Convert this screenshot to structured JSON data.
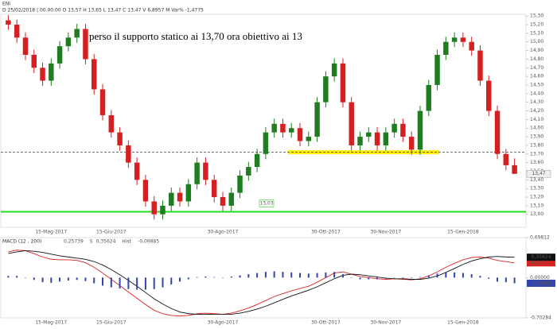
{
  "chart_data": [
    {
      "type": "candlestick",
      "title": "ENI",
      "info": "D 25/02/2018 | 00.00.00  O 13,57  H 13,65  L 13,47  C 13,47  V 6,8957 M  Var% -1,4775",
      "annotation": "perso il supporto statico ai 13,70 ora obiettivo ai 13",
      "categories": [
        null,
        null,
        null,
        null,
        null,
        "15-Mag-2017",
        null,
        null,
        null,
        null,
        null,
        null,
        "15-Giu-2017",
        null,
        null,
        null,
        null,
        null,
        null,
        null,
        null,
        null,
        null,
        null,
        null,
        "30-Ago-2017",
        null,
        null,
        null,
        null,
        null,
        null,
        null,
        null,
        null,
        null,
        null,
        "30-Ott-2017",
        null,
        null,
        null,
        null,
        null,
        null,
        "30-Nov-2017",
        null,
        null,
        null,
        null,
        null,
        null,
        null,
        null,
        "15-Gen-2018",
        null,
        null,
        null,
        null,
        null,
        null
      ],
      "open": [
        15.25,
        15.2,
        15.05,
        14.85,
        14.7,
        14.55,
        14.75,
        14.95,
        15.05,
        15.15,
        14.8,
        14.45,
        14.15,
        13.95,
        13.8,
        13.6,
        13.4,
        13.15,
        13.0,
        13.1,
        13.25,
        13.15,
        13.35,
        13.6,
        13.4,
        13.2,
        13.1,
        13.25,
        13.45,
        13.55,
        13.7,
        13.95,
        14.05,
        13.95,
        14.0,
        13.85,
        13.9,
        14.3,
        14.6,
        14.75,
        14.3,
        13.8,
        13.9,
        13.95,
        13.8,
        13.95,
        14.05,
        13.9,
        13.75,
        14.2,
        14.5,
        14.85,
        15.0,
        15.05,
        15.0,
        14.9,
        14.55,
        14.2,
        13.7,
        13.57
      ],
      "high": [
        15.31,
        15.26,
        15.11,
        14.91,
        14.76,
        14.81,
        15.01,
        15.11,
        15.21,
        15.21,
        14.86,
        14.51,
        14.21,
        14.01,
        13.86,
        13.66,
        13.46,
        13.21,
        13.16,
        13.31,
        13.31,
        13.41,
        13.66,
        13.66,
        13.46,
        13.26,
        13.31,
        13.51,
        13.61,
        13.76,
        14.01,
        14.11,
        14.11,
        14.06,
        14.06,
        13.96,
        14.36,
        14.66,
        14.81,
        14.81,
        14.36,
        13.96,
        14.01,
        14.01,
        14.01,
        14.11,
        14.11,
        13.96,
        14.26,
        14.56,
        14.91,
        15.06,
        15.11,
        15.11,
        15.06,
        14.96,
        14.61,
        14.26,
        13.76,
        13.65
      ],
      "low": [
        15.14,
        14.99,
        14.79,
        14.64,
        14.49,
        14.49,
        14.69,
        14.89,
        14.99,
        14.74,
        14.39,
        14.09,
        13.89,
        13.74,
        13.54,
        13.34,
        13.09,
        12.94,
        12.94,
        13.04,
        13.09,
        13.09,
        13.29,
        13.34,
        13.14,
        13.04,
        13.04,
        13.19,
        13.39,
        13.49,
        13.64,
        13.89,
        13.89,
        13.89,
        13.79,
        13.79,
        13.84,
        14.24,
        14.54,
        14.24,
        13.74,
        13.74,
        13.84,
        13.74,
        13.74,
        13.89,
        13.84,
        13.69,
        13.69,
        14.14,
        14.44,
        14.79,
        14.94,
        14.94,
        14.84,
        14.49,
        14.14,
        13.64,
        13.51,
        13.47
      ],
      "close": [
        15.2,
        15.05,
        14.85,
        14.7,
        14.55,
        14.75,
        14.95,
        15.05,
        15.15,
        14.8,
        14.45,
        14.15,
        13.95,
        13.8,
        13.6,
        13.4,
        13.15,
        13.0,
        13.1,
        13.25,
        13.15,
        13.35,
        13.6,
        13.4,
        13.2,
        13.1,
        13.25,
        13.45,
        13.55,
        13.7,
        13.95,
        14.05,
        13.95,
        14.0,
        13.85,
        13.9,
        14.3,
        14.6,
        14.75,
        14.3,
        13.8,
        13.9,
        13.95,
        13.8,
        13.95,
        14.05,
        13.9,
        13.75,
        14.2,
        14.5,
        14.85,
        15.0,
        15.05,
        15.0,
        14.9,
        14.55,
        14.2,
        13.7,
        13.57,
        13.47
      ],
      "up_color": "#1e7d1e",
      "down_color": "#d42020",
      "ylim": [
        12.85,
        15.32
      ],
      "yticks": [
        {
          "value": 13.0,
          "label": "13,00"
        },
        {
          "value": 13.1,
          "label": "13,10"
        },
        {
          "value": 13.2,
          "label": "13,20"
        },
        {
          "value": 13.3,
          "label": "13,30"
        },
        {
          "value": 13.4,
          "label": "13,40"
        },
        {
          "value": 13.5,
          "label": "13,50"
        },
        {
          "value": 13.6,
          "label": "13,60"
        },
        {
          "value": 13.7,
          "label": "13,70"
        },
        {
          "value": 13.8,
          "label": "13,80"
        },
        {
          "value": 13.9,
          "label": "13,90"
        },
        {
          "value": 14.0,
          "label": "14,00"
        },
        {
          "value": 14.1,
          "label": "14,10"
        },
        {
          "value": 14.2,
          "label": "14,20"
        },
        {
          "value": 14.3,
          "label": "14,30"
        },
        {
          "value": 14.4,
          "label": "14,40"
        },
        {
          "value": 14.5,
          "label": "14,50"
        },
        {
          "value": 14.6,
          "label": "14,60"
        },
        {
          "value": 14.7,
          "label": "14,70"
        },
        {
          "value": 14.8,
          "label": "14,80"
        },
        {
          "value": 14.9,
          "label": "14,90"
        },
        {
          "value": 15.0,
          "label": "15,00"
        },
        {
          "value": 15.1,
          "label": "15,10"
        },
        {
          "value": 15.2,
          "label": "15,20"
        },
        {
          "value": 15.3,
          "label": "15,30"
        }
      ],
      "support_line": {
        "value": 13.03,
        "label": "13,03",
        "color": "#22dd22"
      },
      "dashed_line": {
        "value": 13.72,
        "color": "#444444"
      },
      "highlight": {
        "value": 13.72,
        "color": "#ffee00"
      },
      "last_price": {
        "value": 13.47,
        "label": "13,47"
      }
    },
    {
      "type": "macd",
      "title": "MACD (12 , 200)",
      "series": [
        {
          "color": "#dd2222",
          "last_label": "0,25739",
          "values": [
            0.45,
            0.48,
            0.47,
            0.42,
            0.36,
            0.32,
            0.31,
            0.31,
            0.3,
            0.26,
            0.18,
            0.08,
            -0.03,
            -0.14,
            -0.25,
            -0.36,
            -0.47,
            -0.57,
            -0.63,
            -0.66,
            -0.67,
            -0.66,
            -0.63,
            -0.62,
            -0.63,
            -0.64,
            -0.62,
            -0.58,
            -0.53,
            -0.47,
            -0.4,
            -0.33,
            -0.28,
            -0.23,
            -0.19,
            -0.15,
            -0.08,
            0.0,
            0.08,
            0.1,
            0.06,
            0.02,
            0.0,
            -0.02,
            -0.03,
            -0.02,
            -0.03,
            -0.04,
            -0.02,
            0.03,
            0.1,
            0.18,
            0.25,
            0.31,
            0.35,
            0.36,
            0.34,
            0.3,
            0.28,
            0.25739
          ]
        },
        {
          "name": "S",
          "color": "#111111",
          "last_label": "0,35624",
          "values": [
            0.42,
            0.45,
            0.47,
            0.46,
            0.44,
            0.41,
            0.38,
            0.36,
            0.34,
            0.32,
            0.28,
            0.22,
            0.14,
            0.05,
            -0.05,
            -0.15,
            -0.26,
            -0.37,
            -0.46,
            -0.54,
            -0.6,
            -0.63,
            -0.64,
            -0.64,
            -0.64,
            -0.64,
            -0.64,
            -0.62,
            -0.59,
            -0.55,
            -0.5,
            -0.44,
            -0.38,
            -0.32,
            -0.27,
            -0.22,
            -0.16,
            -0.09,
            -0.02,
            0.04,
            0.06,
            0.05,
            0.03,
            0.01,
            -0.01,
            -0.02,
            -0.02,
            -0.03,
            -0.03,
            -0.01,
            0.03,
            0.09,
            0.16,
            0.23,
            0.29,
            0.33,
            0.36,
            0.37,
            0.36,
            0.35624
          ]
        },
        {
          "name": "Hist",
          "color": "#3344aa",
          "last_label": "-0,09885",
          "values": [
            0.03,
            0.03,
            0,
            -0.04,
            -0.08,
            -0.09,
            -0.07,
            -0.05,
            -0.04,
            -0.06,
            -0.1,
            -0.14,
            -0.17,
            -0.19,
            -0.2,
            -0.21,
            -0.21,
            -0.2,
            -0.17,
            -0.12,
            -0.07,
            -0.03,
            0.01,
            0.02,
            0.01,
            0,
            0.02,
            0.04,
            0.06,
            0.08,
            0.1,
            0.11,
            0.1,
            0.09,
            0.08,
            0.07,
            0.08,
            0.09,
            0.1,
            0.06,
            0,
            -0.03,
            -0.03,
            -0.03,
            -0.02,
            0,
            -0.01,
            -0.01,
            0.01,
            0.04,
            0.07,
            0.09,
            0.09,
            0.08,
            0.06,
            0.03,
            -0.02,
            -0.07,
            -0.08,
            -0.09885
          ]
        }
      ],
      "ylim": [
        -0.70284,
        0.69812
      ],
      "yticks": [
        {
          "value": 0.69812,
          "label": "0,69812"
        },
        {
          "value": 0,
          "label": "0,00000"
        },
        {
          "value": -0.70284,
          "label": "-0,70284"
        }
      ]
    }
  ]
}
